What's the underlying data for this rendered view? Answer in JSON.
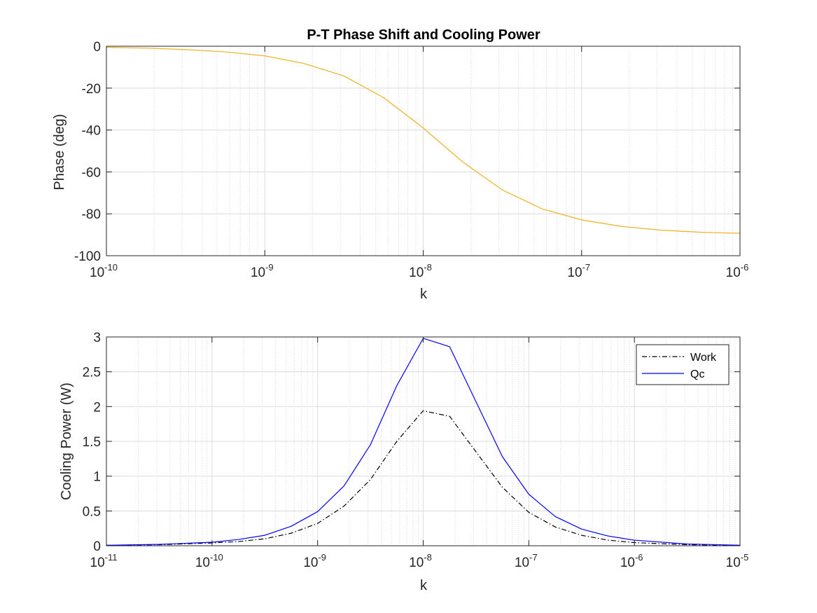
{
  "colors": {
    "phase_line": "#EDB120",
    "work_line": "#000000",
    "qc_line": "#0000FF",
    "axis": "#262626",
    "grid": "#dcdcdc",
    "minor_grid": "#d0d0d0"
  },
  "chart_data": [
    {
      "type": "line",
      "title": "P-T Phase Shift and Cooling Power",
      "xlabel": "k",
      "ylabel": "Phase (deg)",
      "xscale": "log",
      "xlim": [
        1e-10,
        1e-06
      ],
      "ylim": [
        -100,
        0
      ],
      "xticks": [
        {
          "base": "10",
          "exp": "-10"
        },
        {
          "base": "10",
          "exp": "-9"
        },
        {
          "base": "10",
          "exp": "-8"
        },
        {
          "base": "10",
          "exp": "-7"
        },
        {
          "base": "10",
          "exp": "-6"
        }
      ],
      "yticks": [
        "0",
        "-20",
        "-40",
        "-60",
        "-80",
        "-100"
      ],
      "grid": true,
      "series": [
        {
          "x": [
            1e-10,
            1.78e-10,
            3.16e-10,
            5.62e-10,
            1e-09,
            1.78e-09,
            3.16e-09,
            5.62e-09,
            1e-08,
            1.78e-08,
            3.16e-08,
            5.62e-08,
            1e-07,
            1.78e-07,
            3.16e-07,
            5.62e-07,
            1e-06
          ],
          "y": [
            -0.5,
            -0.9,
            -1.6,
            -2.7,
            -4.6,
            -8.3,
            -14.2,
            -24.5,
            -39.0,
            -55.3,
            -68.6,
            -77.6,
            -82.9,
            -86.0,
            -87.8,
            -88.8,
            -89.3
          ]
        }
      ]
    },
    {
      "type": "line",
      "title": "",
      "xlabel": "k",
      "ylabel": "Cooling Power (W)",
      "xscale": "log",
      "xlim": [
        1e-11,
        1e-05
      ],
      "ylim": [
        0,
        3
      ],
      "xticks": [
        {
          "base": "10",
          "exp": "-11"
        },
        {
          "base": "10",
          "exp": "-10"
        },
        {
          "base": "10",
          "exp": "-9"
        },
        {
          "base": "10",
          "exp": "-8"
        },
        {
          "base": "10",
          "exp": "-7"
        },
        {
          "base": "10",
          "exp": "-6"
        },
        {
          "base": "10",
          "exp": "-5"
        }
      ],
      "yticks": [
        "0",
        "0.5",
        "1",
        "1.5",
        "2",
        "2.5",
        "3"
      ],
      "grid": true,
      "legend_position": "top-right",
      "series": [
        {
          "name": "Work",
          "style": "dash-dot",
          "x": [
            1e-11,
            3.16e-11,
            1e-10,
            1.78e-10,
            3.16e-10,
            5.62e-10,
            1e-09,
            1.78e-09,
            3.16e-09,
            5.62e-09,
            1e-08,
            1.78e-08,
            3.16e-08,
            5.62e-08,
            1e-07,
            1.78e-07,
            3.16e-07,
            5.62e-07,
            1e-06,
            3.16e-06,
            1e-05
          ],
          "y": [
            0.005,
            0.015,
            0.04,
            0.06,
            0.1,
            0.18,
            0.32,
            0.57,
            0.95,
            1.5,
            1.94,
            1.86,
            1.35,
            0.84,
            0.48,
            0.27,
            0.15,
            0.08,
            0.045,
            0.015,
            0.005
          ]
        },
        {
          "name": "Qc",
          "style": "solid",
          "x": [
            1e-11,
            3.16e-11,
            1e-10,
            1.78e-10,
            3.16e-10,
            5.62e-10,
            1e-09,
            1.78e-09,
            3.16e-09,
            5.62e-09,
            1e-08,
            1.78e-08,
            3.16e-08,
            5.62e-08,
            1e-07,
            1.78e-07,
            3.16e-07,
            5.62e-07,
            1e-06,
            3.16e-06,
            1e-05
          ],
          "y": [
            0.007,
            0.02,
            0.05,
            0.09,
            0.15,
            0.28,
            0.49,
            0.86,
            1.45,
            2.3,
            2.98,
            2.86,
            2.07,
            1.28,
            0.74,
            0.42,
            0.24,
            0.14,
            0.08,
            0.025,
            0.008
          ]
        }
      ]
    }
  ]
}
